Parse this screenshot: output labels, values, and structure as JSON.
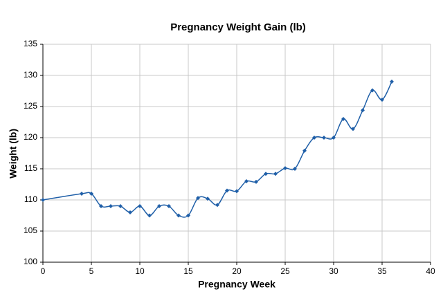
{
  "chart_data": {
    "type": "line",
    "title": "Pregnancy Weight Gain (lb)",
    "x_label": "Pregnancy Week",
    "y_label": "Weight (lb)",
    "x": [
      0,
      4,
      5,
      6,
      7,
      8,
      9,
      10,
      11,
      12,
      13,
      14,
      15,
      16,
      17,
      18,
      19,
      20,
      21,
      22,
      23,
      24,
      25,
      26,
      27,
      28,
      29,
      30,
      31,
      32,
      33,
      34,
      35,
      36
    ],
    "series": [
      {
        "name": "Weight",
        "color": "#1f5fa8",
        "values": [
          110,
          111,
          111,
          109,
          109,
          109,
          108,
          109,
          107.5,
          109,
          109,
          107.5,
          107.5,
          110.3,
          110.2,
          109.2,
          111.5,
          111.4,
          113,
          112.9,
          114.2,
          114.2,
          115.1,
          115,
          117.9,
          120,
          120,
          120,
          123,
          121.4,
          124.4,
          127.6,
          126.1,
          129
        ]
      }
    ],
    "xlim": [
      0,
      40
    ],
    "xticks": [
      0,
      5,
      10,
      15,
      20,
      25,
      30,
      35,
      40
    ],
    "ylim": [
      100,
      135
    ],
    "yticks": [
      100,
      105,
      110,
      115,
      120,
      125,
      130,
      135
    ],
    "grid": true
  }
}
